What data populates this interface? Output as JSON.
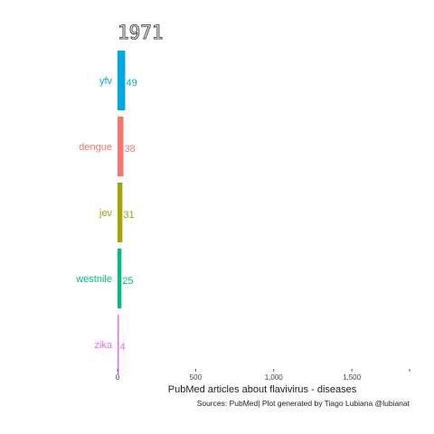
{
  "chart_data": {
    "type": "bar",
    "orientation": "horizontal",
    "title": "1971",
    "xlabel": "PubMed articles about flavivirus - diseases",
    "caption": "Sources: PubMed| Plot generated by Tiago Lubiana @lubianat",
    "xlim": [
      0,
      1870
    ],
    "xticks": [
      0,
      500,
      1000,
      1500
    ],
    "xtick_labels": [
      "0",
      "500",
      "1,000",
      "1,500"
    ],
    "categories": [
      "yfv",
      "dengue",
      "jev",
      "westnile",
      "zika"
    ],
    "values": [
      49,
      38,
      31,
      25,
      4
    ],
    "value_labels": [
      "49",
      "38",
      "31",
      "25",
      "4"
    ],
    "colors": [
      "#00a9e0",
      "#f8766d",
      "#a3a500",
      "#00bf7d",
      "#e76bf3"
    ],
    "grid": false,
    "legend": "none"
  }
}
